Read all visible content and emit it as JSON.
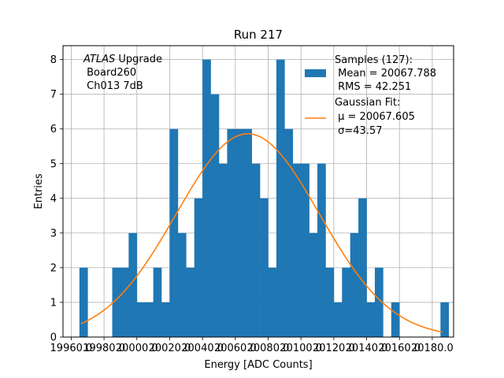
{
  "chart_data": {
    "type": "bar",
    "title": "Run 217",
    "xlabel": "Energy [ADC Counts]",
    "ylabel": "Entries",
    "xlim": [
      19955.0,
      20193.0
    ],
    "ylim": [
      0,
      8.4
    ],
    "grid": true,
    "bin_width": 5.0,
    "x_ticks": [
      19960,
      19980,
      20000,
      20020,
      20040,
      20060,
      20080,
      20100,
      20120,
      20140,
      20160,
      20180
    ],
    "x_tick_labels": [
      "19960.0",
      "19980.0",
      "20000.0",
      "20020.0",
      "20040.0",
      "20060.0",
      "20080.0",
      "20100.0",
      "20120.0",
      "20140.0",
      "20160.0",
      "20180.0"
    ],
    "y_ticks": [
      0,
      1,
      2,
      3,
      4,
      5,
      6,
      7,
      8
    ],
    "y_tick_labels": [
      "0",
      "1",
      "2",
      "3",
      "4",
      "5",
      "6",
      "7",
      "8"
    ],
    "histogram": {
      "bin_left_edges": [
        19965,
        19985,
        19990,
        19995,
        20000,
        20005,
        20010,
        20015,
        20020,
        20025,
        20030,
        20035,
        20040,
        20045,
        20050,
        20055,
        20060,
        20065,
        20070,
        20075,
        20080,
        20085,
        20090,
        20095,
        20100,
        20105,
        20110,
        20115,
        20120,
        20125,
        20130,
        20135,
        20140,
        20145,
        20155,
        20185
      ],
      "counts": [
        2,
        2,
        2,
        3,
        1,
        1,
        2,
        1,
        6,
        3,
        2,
        4,
        8,
        7,
        5,
        6,
        6,
        6,
        5,
        4,
        2,
        8,
        6,
        5,
        5,
        3,
        5,
        2,
        1,
        2,
        3,
        4,
        1,
        2,
        1,
        1
      ]
    },
    "series": [
      {
        "name": "Samples (127):",
        "kind": "histogram",
        "color": "#1f77b4"
      },
      {
        "name": "Gaussian Fit:",
        "kind": "line",
        "color": "#ff7f0e",
        "mu": 20067.605,
        "sigma": 43.57,
        "amplitude": 5.86,
        "x_range": [
          19966.0,
          20186.0
        ]
      }
    ],
    "legend": {
      "position": "top-right",
      "entries": [
        {
          "lines": [
            "Samples (127):",
            " Mean = 20067.788",
            " RMS = 42.251"
          ]
        },
        {
          "lines": [
            "Gaussian Fit:",
            " μ = 20067.605",
            " σ=43.57"
          ]
        }
      ]
    },
    "annotation": {
      "position": "top-left",
      "lines": [
        "ATLAS Upgrade",
        " Board260",
        " Ch013 7dB"
      ]
    }
  }
}
